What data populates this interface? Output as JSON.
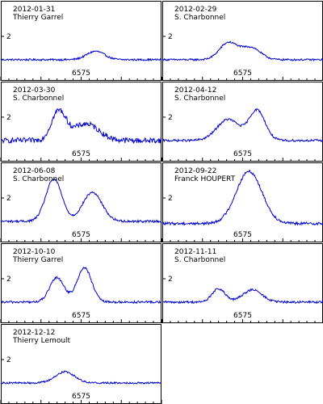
{
  "chart_data": [
    {
      "type": "line",
      "date": "2012-01-31",
      "observer": "Thierry Garrel",
      "y_tick": "2",
      "x_tick": "6575",
      "ylim": [
        0,
        3.6
      ],
      "peaks": [
        {
          "center": 6575.9,
          "height": 0.38,
          "width": 0.55
        }
      ],
      "baseline": 0.95,
      "noise": 0.04
    },
    {
      "type": "line",
      "date": "2012-02-29",
      "observer": "S. Charbonnel",
      "y_tick": "2",
      "x_tick": "6575",
      "ylim": [
        0,
        3.6
      ],
      "peaks": [
        {
          "center": 6574.1,
          "height": 0.75,
          "width": 0.55
        },
        {
          "center": 6575.5,
          "height": 0.55,
          "width": 0.6
        }
      ],
      "baseline": 0.95,
      "noise": 0.04
    },
    {
      "type": "line",
      "date": "2012-03-30",
      "observer": "S. Charbonnel",
      "y_tick": "2",
      "x_tick": "6575",
      "ylim": [
        0,
        3.6
      ],
      "peaks": [
        {
          "center": 6573.6,
          "height": 1.3,
          "width": 0.45
        },
        {
          "center": 6575.3,
          "height": 0.75,
          "width": 0.8
        }
      ],
      "baseline": 0.95,
      "noise": 0.12
    },
    {
      "type": "line",
      "date": "2012-04-12",
      "observer": "S. Charbonnel",
      "y_tick": "2",
      "x_tick": "6575",
      "ylim": [
        0,
        3.6
      ],
      "peaks": [
        {
          "center": 6574.1,
          "height": 0.95,
          "width": 0.7
        },
        {
          "center": 6575.9,
          "height": 1.35,
          "width": 0.5
        }
      ],
      "baseline": 0.95,
      "noise": 0.05
    },
    {
      "type": "line",
      "date": "2012-06-08",
      "observer": "S. Charbonnel",
      "y_tick": "2",
      "x_tick": "6575",
      "ylim": [
        0,
        3.6
      ],
      "peaks": [
        {
          "center": 6573.3,
          "height": 1.9,
          "width": 0.5
        },
        {
          "center": 6575.7,
          "height": 1.3,
          "width": 0.6
        }
      ],
      "baseline": 0.95,
      "noise": 0.05
    },
    {
      "type": "line",
      "date": "2012-09-22",
      "observer": "Franck HOUPERT",
      "y_tick": "2",
      "x_tick": "6575",
      "ylim": [
        0,
        3.6
      ],
      "peaks": [
        {
          "center": 6575.4,
          "height": 2.35,
          "width": 0.8
        }
      ],
      "baseline": 0.85,
      "noise": 0.06
    },
    {
      "type": "line",
      "date": "2012-10-10",
      "observer": "Thierry Garrel",
      "y_tick": "2",
      "x_tick": "6575",
      "ylim": [
        0,
        3.6
      ],
      "peaks": [
        {
          "center": 6573.5,
          "height": 1.1,
          "width": 0.45
        },
        {
          "center": 6575.2,
          "height": 1.55,
          "width": 0.45
        }
      ],
      "baseline": 0.95,
      "noise": 0.05
    },
    {
      "type": "line",
      "date": "2012-11-11",
      "observer": "S. Charbonnel",
      "y_tick": "2",
      "x_tick": "6575",
      "ylim": [
        0,
        3.6
      ],
      "peaks": [
        {
          "center": 6573.5,
          "height": 0.6,
          "width": 0.4
        },
        {
          "center": 6575.6,
          "height": 0.55,
          "width": 0.6
        }
      ],
      "baseline": 0.95,
      "noise": 0.05
    },
    {
      "type": "line",
      "date": "2012-12-12",
      "observer": "Thierry Lemoult",
      "y_tick": "2",
      "x_tick": "6575",
      "ylim": [
        0,
        3.6
      ],
      "peaks": [
        {
          "center": 6574.0,
          "height": 0.5,
          "width": 0.6
        }
      ],
      "baseline": 0.95,
      "noise": 0.04
    }
  ],
  "colors": {
    "line": "#0000cc",
    "frame": "#000000",
    "background": "#ffffff"
  }
}
